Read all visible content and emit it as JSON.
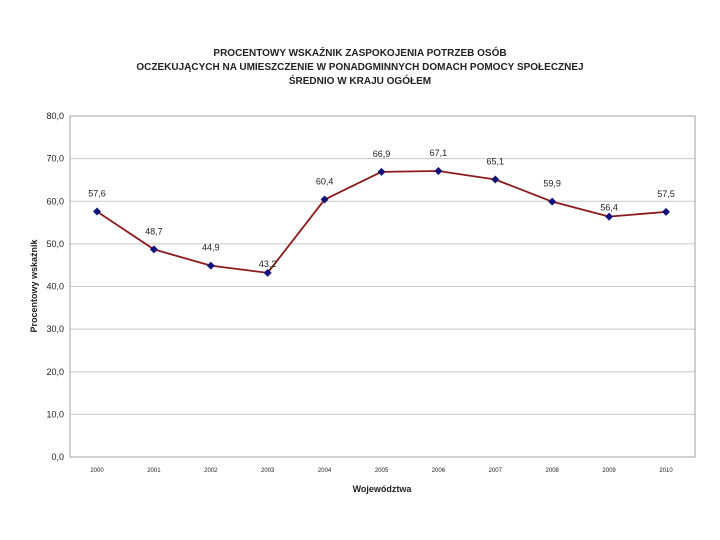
{
  "chart_data": {
    "type": "line",
    "title": [
      "PROCENTOWY WSKAŹNIK ZASPOKOJENIA POTRZEB OSÓB",
      "OCZEKUJĄCYCH NA UMIESZCZENIE W PONADGMINNYCH DOMACH POMOCY SPOŁECZNEJ",
      "ŚREDNIO W KRAJU OGÓŁEM"
    ],
    "xlabel": "Województwa",
    "ylabel": "Procentowy wskaźnik",
    "categories": [
      "2000",
      "2001",
      "2002",
      "2003",
      "2004",
      "2005",
      "2006",
      "2007",
      "2008",
      "2009",
      "2010"
    ],
    "series": [
      {
        "name": "Procentowy wskaźnik",
        "values": [
          57.6,
          48.7,
          44.9,
          43.2,
          60.4,
          66.9,
          67.1,
          65.1,
          59.9,
          56.4,
          57.5
        ],
        "labels": [
          "57,6",
          "48,7",
          "44,9",
          "43,2",
          "60,4",
          "66,9",
          "67,1",
          "65,1",
          "59,9",
          "56,4",
          "57,5"
        ]
      }
    ],
    "yticks": [
      "0,0",
      "10,0",
      "20,0",
      "30,0",
      "40,0",
      "50,0",
      "60,0",
      "70,0",
      "80,0"
    ],
    "ylim": [
      0,
      80
    ],
    "ystep": 10,
    "grid": true,
    "legend": "none"
  },
  "colors": {
    "line": "#8b1a1a",
    "marker": "#13137a",
    "grid": "#c8c8c8",
    "frame": "#a0a0a0",
    "text": "#222222"
  }
}
